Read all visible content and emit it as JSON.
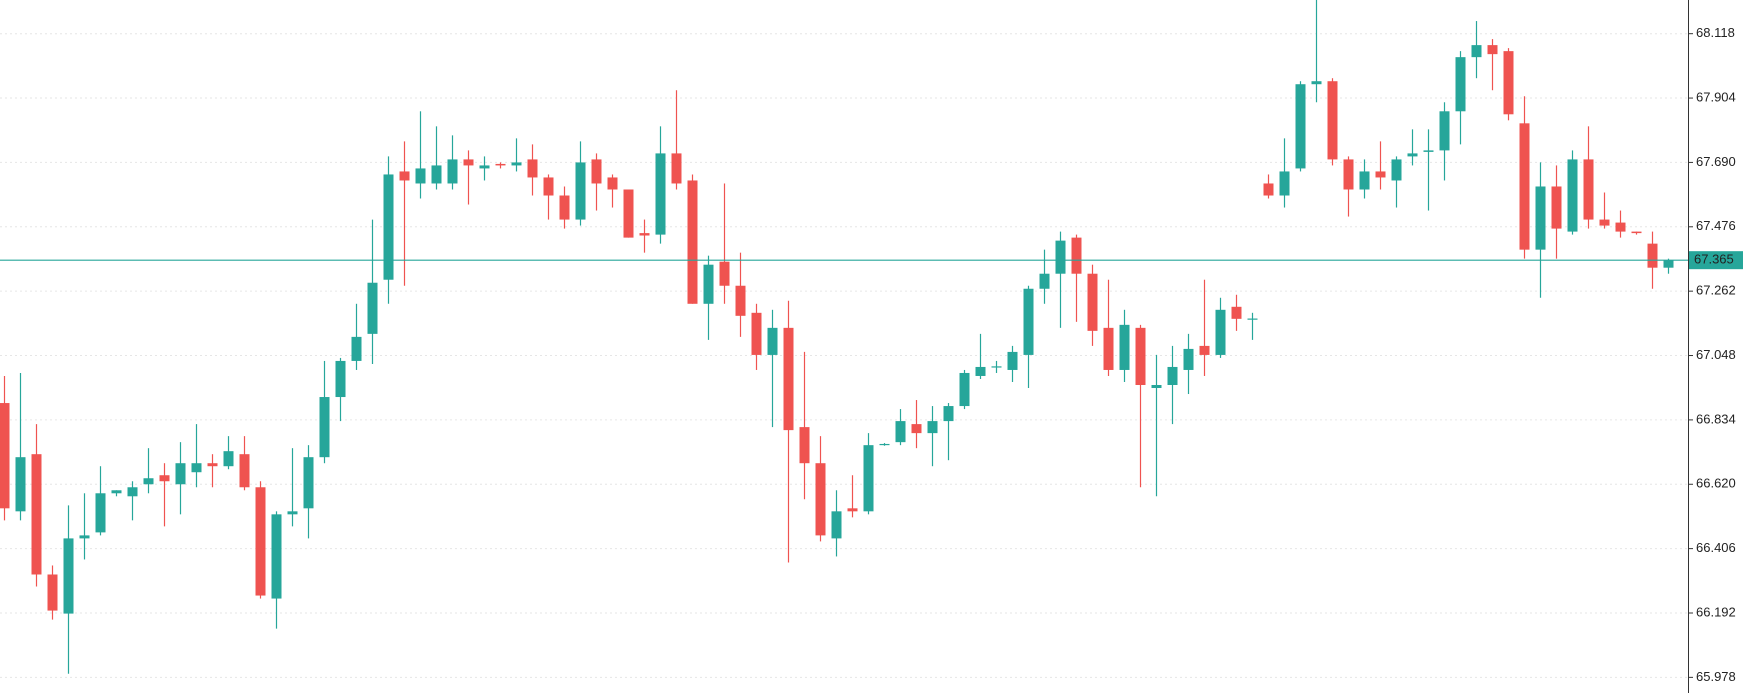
{
  "chart_data": {
    "type": "candlestick",
    "up_color": "#26a69a",
    "down_color": "#ef5350",
    "grid": true,
    "ylim": [
      65.926,
      68.23
    ],
    "yticks": [
      65.978,
      66.192,
      66.406,
      {
        "value": 66.62,
        "label": "66.620"
      },
      66.834,
      67.048,
      67.262,
      67.476,
      {
        "value": 67.69,
        "label": "67.690"
      },
      67.904,
      68.118
    ],
    "current_price": 67.365,
    "open": [
      66.89,
      66.53,
      66.72,
      66.32,
      66.19,
      66.44,
      66.46,
      66.59,
      66.58,
      66.62,
      66.65,
      66.62,
      66.66,
      66.69,
      66.68,
      66.72,
      66.61,
      66.24,
      66.52,
      66.54,
      66.71,
      66.91,
      67.03,
      67.12,
      67.3,
      67.66,
      67.62,
      67.62,
      67.62,
      67.7,
      67.67,
      67.685,
      67.68,
      67.7,
      67.64,
      67.58,
      67.5,
      67.7,
      67.64,
      67.6,
      67.455,
      67.45,
      67.72,
      67.63,
      67.22,
      67.36,
      67.28,
      67.19,
      67.05,
      67.14,
      66.81,
      66.69,
      66.44,
      66.54,
      66.53,
      66.75,
      66.76,
      66.82,
      66.79,
      66.83,
      66.88,
      66.98,
      67.008,
      67.0,
      67.05,
      67.27,
      67.32,
      67.44,
      67.32,
      67.14,
      67.0,
      67.14,
      66.94,
      66.95,
      67.0,
      67.08,
      67.05,
      67.21,
      67.167,
      67.62,
      67.58,
      67.67,
      67.95,
      67.96,
      67.7,
      67.6,
      67.66,
      67.63,
      67.71,
      67.725,
      67.73,
      67.86,
      68.04,
      68.08,
      68.06,
      67.82,
      67.4,
      67.61,
      67.46,
      67.7,
      67.5,
      67.49,
      67.46,
      67.42,
      67.34
    ],
    "high": [
      66.98,
      66.99,
      66.82,
      66.35,
      66.55,
      66.59,
      66.68,
      66.6,
      66.63,
      66.74,
      66.69,
      66.76,
      66.82,
      66.72,
      66.78,
      66.78,
      66.63,
      66.53,
      66.74,
      66.75,
      67.03,
      67.04,
      67.22,
      67.5,
      67.71,
      67.76,
      67.86,
      67.81,
      67.78,
      67.73,
      67.71,
      67.69,
      67.77,
      67.75,
      67.65,
      67.61,
      67.76,
      67.72,
      67.65,
      67.6,
      67.5,
      67.81,
      67.93,
      67.65,
      67.38,
      67.62,
      67.39,
      67.22,
      67.2,
      67.23,
      67.06,
      66.78,
      66.6,
      66.65,
      66.79,
      66.757,
      66.87,
      66.9,
      66.88,
      66.89,
      67.0,
      67.12,
      67.03,
      67.08,
      67.28,
      67.4,
      67.46,
      67.45,
      67.35,
      67.3,
      67.2,
      67.15,
      67.05,
      67.08,
      67.12,
      67.3,
      67.24,
      67.25,
      67.19,
      67.65,
      67.77,
      67.96,
      68.23,
      67.97,
      67.71,
      67.7,
      67.76,
      67.71,
      67.8,
      67.8,
      67.89,
      68.06,
      68.16,
      68.1,
      68.07,
      67.91,
      67.69,
      67.68,
      67.73,
      67.81,
      67.59,
      67.53,
      67.46,
      67.46,
      67.37
    ],
    "low": [
      66.5,
      66.5,
      66.28,
      66.17,
      65.99,
      66.37,
      66.45,
      66.58,
      66.5,
      66.59,
      66.48,
      66.52,
      66.61,
      66.61,
      66.67,
      66.6,
      66.24,
      66.14,
      66.48,
      66.44,
      66.69,
      66.83,
      67.0,
      67.02,
      67.22,
      67.28,
      67.57,
      67.6,
      67.6,
      67.55,
      67.63,
      67.67,
      67.66,
      67.58,
      67.5,
      67.47,
      67.48,
      67.53,
      67.54,
      67.44,
      67.39,
      67.42,
      67.6,
      67.22,
      67.1,
      67.22,
      67.11,
      67.0,
      66.81,
      66.36,
      66.57,
      66.43,
      66.38,
      66.51,
      66.52,
      66.748,
      66.75,
      66.74,
      66.68,
      66.7,
      66.87,
      66.97,
      66.99,
      66.96,
      66.94,
      67.22,
      67.14,
      67.16,
      67.08,
      66.98,
      66.96,
      66.61,
      66.58,
      66.82,
      66.92,
      66.98,
      67.04,
      67.13,
      67.1,
      67.57,
      67.54,
      67.66,
      67.89,
      67.68,
      67.51,
      67.57,
      67.6,
      67.54,
      67.68,
      67.53,
      67.63,
      67.75,
      67.97,
      67.93,
      67.83,
      67.37,
      67.24,
      67.37,
      67.45,
      67.47,
      67.47,
      67.44,
      67.45,
      67.27,
      67.32
    ],
    "close": [
      66.54,
      66.71,
      66.32,
      66.2,
      66.44,
      66.45,
      66.59,
      66.6,
      66.61,
      66.64,
      66.63,
      66.69,
      66.69,
      66.68,
      66.73,
      66.61,
      66.25,
      66.52,
      66.53,
      66.71,
      66.91,
      67.03,
      67.11,
      67.29,
      67.65,
      67.63,
      67.67,
      67.68,
      67.7,
      67.68,
      67.68,
      67.68,
      67.69,
      67.64,
      67.58,
      67.5,
      67.69,
      67.62,
      67.6,
      67.44,
      67.447,
      67.72,
      67.62,
      67.22,
      67.35,
      67.28,
      67.18,
      67.05,
      67.14,
      66.8,
      66.69,
      66.45,
      66.53,
      66.53,
      66.75,
      66.754,
      66.83,
      66.79,
      66.83,
      66.88,
      66.99,
      67.01,
      67.012,
      67.06,
      67.27,
      67.32,
      67.43,
      67.32,
      67.13,
      67.0,
      67.15,
      66.95,
      66.95,
      67.01,
      67.07,
      67.05,
      67.2,
      67.17,
      67.171,
      67.58,
      67.66,
      67.95,
      67.96,
      67.7,
      67.6,
      67.66,
      67.64,
      67.7,
      67.72,
      67.73,
      67.86,
      68.04,
      68.08,
      68.05,
      67.85,
      67.4,
      67.61,
      67.47,
      67.7,
      67.5,
      67.48,
      67.46,
      67.455,
      67.34,
      67.365
    ]
  }
}
